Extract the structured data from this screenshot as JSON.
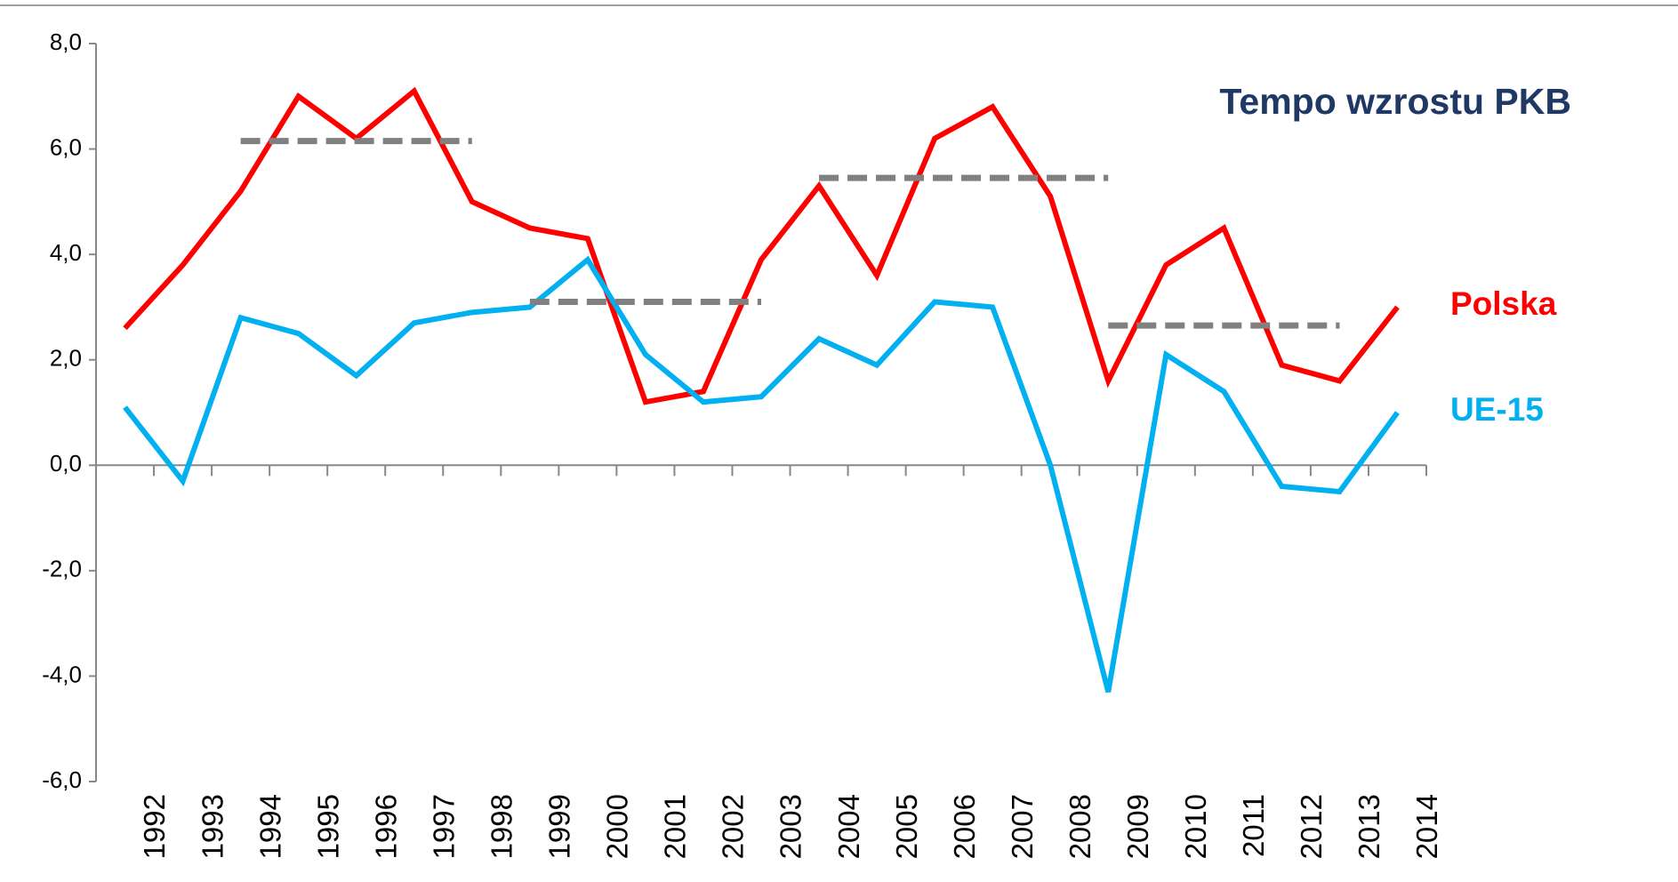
{
  "chart_data": {
    "type": "line",
    "title": "Tempo wzrostu PKB",
    "categories": [
      "1992",
      "1993",
      "1994",
      "1995",
      "1996",
      "1997",
      "1998",
      "1999",
      "2000",
      "2001",
      "2002",
      "2003",
      "2004",
      "2005",
      "2006",
      "2007",
      "2008",
      "2009",
      "2010",
      "2011",
      "2012",
      "2013",
      "2014"
    ],
    "series": [
      {
        "name": "Polska",
        "color": "#ff0000",
        "values": [
          2.6,
          3.8,
          5.2,
          7.0,
          6.2,
          7.1,
          5.0,
          4.5,
          4.3,
          1.2,
          1.4,
          3.9,
          5.3,
          3.6,
          6.2,
          6.8,
          5.1,
          1.6,
          3.8,
          4.5,
          1.9,
          1.6,
          3.0
        ]
      },
      {
        "name": "UE-15",
        "color": "#00b0f0",
        "values": [
          1.1,
          -0.3,
          2.8,
          2.5,
          1.7,
          2.7,
          2.9,
          3.0,
          3.9,
          2.1,
          1.2,
          1.3,
          2.4,
          1.9,
          3.1,
          3.0,
          0.0,
          -4.3,
          2.1,
          1.4,
          -0.4,
          -0.5,
          1.0
        ]
      },
      {
        "color": "#808080",
        "dashed": true,
        "values": [
          null,
          null,
          6.15,
          6.15,
          6.15,
          6.15,
          6.15,
          null,
          null,
          null,
          null,
          null,
          5.45,
          5.45,
          5.45,
          5.45,
          5.45,
          5.45,
          null,
          null,
          null,
          null,
          null
        ]
      },
      {
        "color": "#808080",
        "dashed": true,
        "values": [
          null,
          null,
          null,
          null,
          null,
          null,
          null,
          3.1,
          3.1,
          3.1,
          3.1,
          3.1,
          null,
          null,
          null,
          null,
          null,
          2.65,
          2.65,
          2.65,
          2.65,
          2.65,
          null
        ]
      }
    ],
    "ylim": [
      -6,
      8
    ],
    "yticks": [
      {
        "value": -6,
        "label": "-6,0"
      },
      {
        "value": -4,
        "label": "-4,0"
      },
      {
        "value": -2,
        "label": "-2,0"
      },
      {
        "value": 0,
        "label": "0,0"
      },
      {
        "value": 2,
        "label": "2,0"
      },
      {
        "value": 4,
        "label": "4,0"
      },
      {
        "value": 6,
        "label": "6,0"
      },
      {
        "value": 8,
        "label": "8,0"
      }
    ],
    "grid": false
  }
}
